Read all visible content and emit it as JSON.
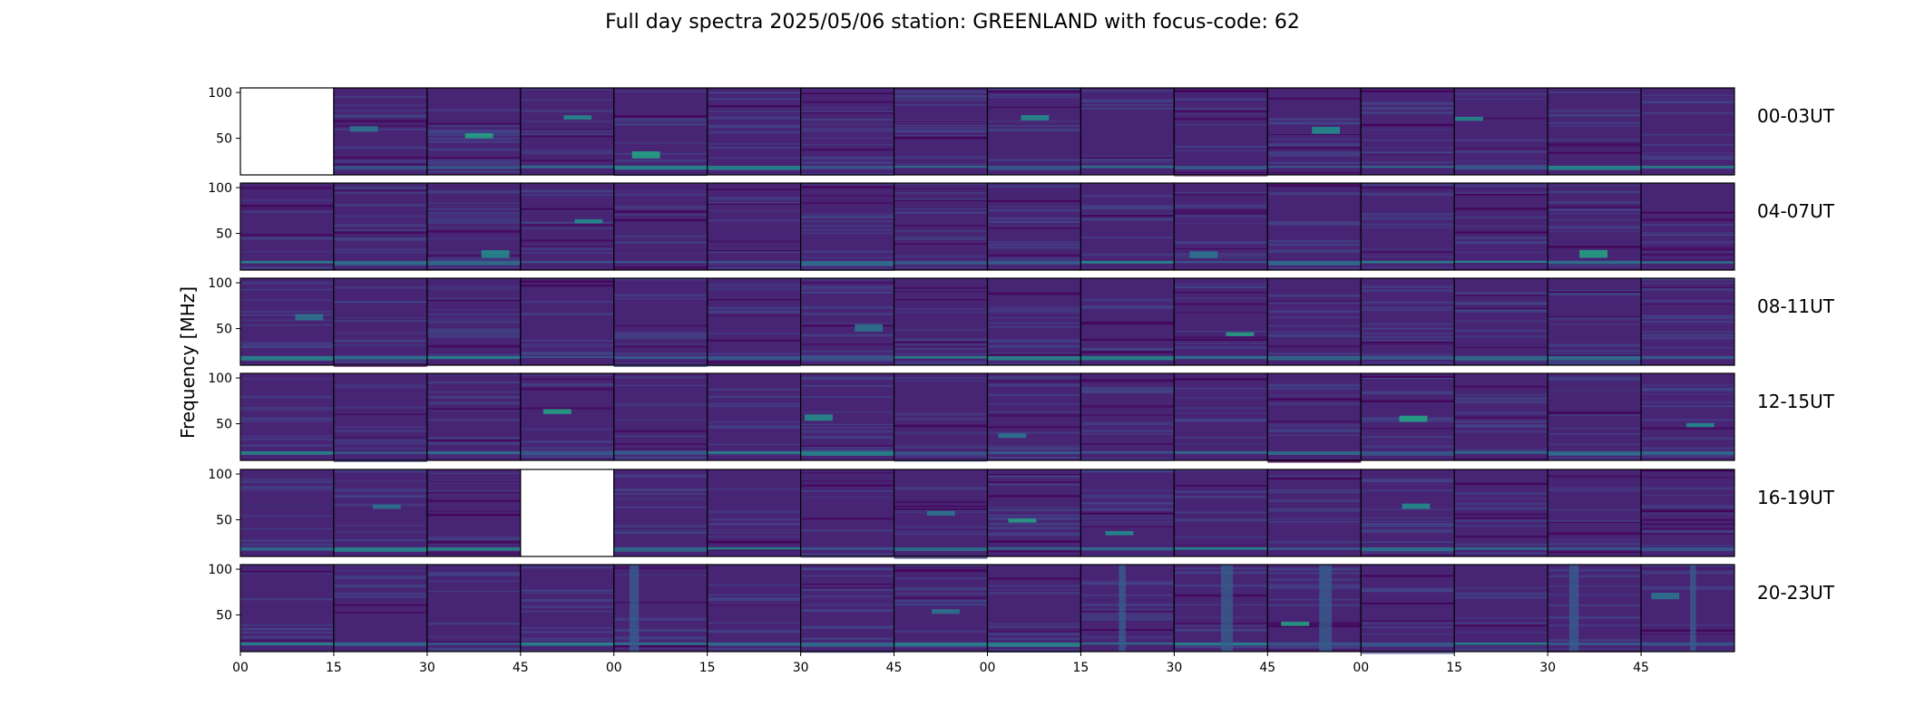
{
  "chart_data": {
    "type": "heatmap",
    "title": "Full day spectra 2025/05/06 station: GREENLAND with focus-code: 62",
    "ylabel": "Frequency [MHz]",
    "xlabel": "",
    "ylim": [
      10,
      105
    ],
    "y_ticks": [
      "100",
      "50"
    ],
    "y_tick_values": [
      100,
      50
    ],
    "x_tick_labels": [
      "00",
      "15",
      "30",
      "45",
      "00",
      "15",
      "30",
      "45",
      "00",
      "15",
      "30",
      "45",
      "00",
      "15",
      "30",
      "45"
    ],
    "rows": [
      {
        "label": "00-03UT",
        "missing_panels": [
          0
        ]
      },
      {
        "label": "04-07UT",
        "missing_panels": []
      },
      {
        "label": "08-11UT",
        "missing_panels": []
      },
      {
        "label": "12-15UT",
        "missing_panels": []
      },
      {
        "label": "16-19UT",
        "missing_panels": [
          3
        ]
      },
      {
        "label": "20-23UT",
        "missing_panels": []
      }
    ],
    "panels_per_row": 16,
    "colormap": [
      "#440154",
      "#482475",
      "#414487",
      "#355f8d",
      "#2a788e",
      "#21918c",
      "#22a884",
      "#44bf70"
    ]
  }
}
